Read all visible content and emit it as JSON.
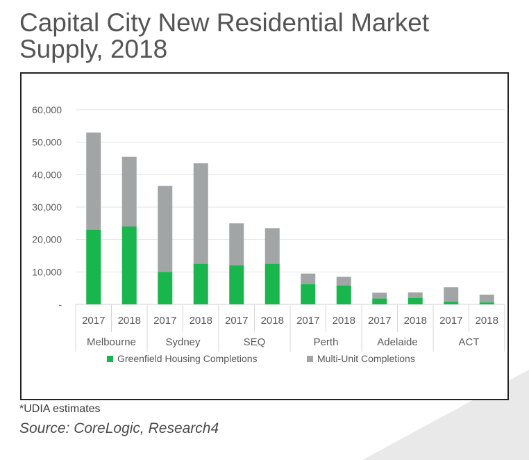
{
  "title_line1": "Capital City New Residential Market",
  "title_line2": "Supply, 2018",
  "footnote": "*UDIA estimates",
  "source": "Source: CoreLogic, Research4",
  "colors": {
    "greenfield": "#18b64d",
    "multi_unit": "#a2a5a6"
  },
  "chart_data": {
    "type": "bar",
    "stacked": true,
    "groups": [
      "Melbourne",
      "Sydney",
      "SEQ",
      "Perth",
      "Adelaide",
      "ACT"
    ],
    "categories": [
      "2017",
      "2018",
      "2017",
      "2018",
      "2017",
      "2018",
      "2017",
      "2018",
      "2017",
      "2018",
      "2017",
      "2018"
    ],
    "series": [
      {
        "name": "Greenfield Housing Completions",
        "values": [
          23000,
          24000,
          10000,
          12500,
          12000,
          12500,
          6200,
          5800,
          1800,
          2000,
          800,
          600
        ]
      },
      {
        "name": "Multi-Unit Completions",
        "values": [
          30000,
          21500,
          26500,
          31000,
          13000,
          11000,
          3300,
          2700,
          1800,
          1700,
          4500,
          2400
        ]
      }
    ],
    "ylim": [
      0,
      60000
    ],
    "yticks": [
      "-",
      "10,000",
      "20,000",
      "30,000",
      "40,000",
      "50,000",
      "60,000"
    ],
    "grid": true,
    "legend_position": "bottom"
  }
}
